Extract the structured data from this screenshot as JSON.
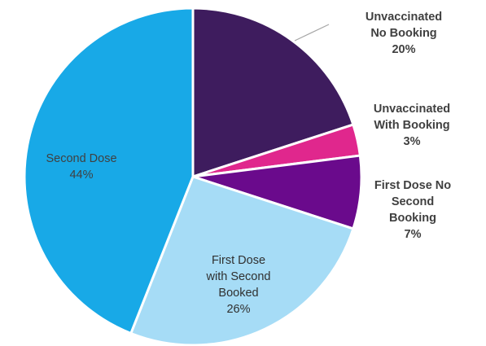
{
  "chart_data": {
    "type": "pie",
    "title": "",
    "slices": [
      {
        "label": "Unvaccinated No Booking",
        "lines": [
          "Unvaccinated",
          "No Booking",
          "20%"
        ],
        "value": 20,
        "color": "#3e1c5e"
      },
      {
        "label": "Unvaccinated With Booking",
        "lines": [
          "Unvaccinated",
          "With Booking",
          "3%"
        ],
        "value": 3,
        "color": "#e0278d"
      },
      {
        "label": "First Dose No Second Booking",
        "lines": [
          "First Dose No",
          "Second",
          "Booking",
          "7%"
        ],
        "value": 7,
        "color": "#6a0a8c"
      },
      {
        "label": "First Dose with Second Booked",
        "lines": [
          "First Dose",
          "with Second",
          "Booked",
          "26%"
        ],
        "value": 26,
        "color": "#a6dcf6"
      },
      {
        "label": "Second Dose",
        "lines": [
          "Second Dose",
          "44%"
        ],
        "value": 44,
        "color": "#18a9e7"
      }
    ],
    "start_angle_deg": 0,
    "direction": "clockwise",
    "label_placement": "mixed: first three slices labeled outside right, last two labeled inside"
  }
}
